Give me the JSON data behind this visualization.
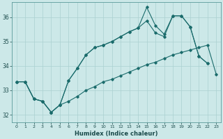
{
  "xlabel": "Humidex (Indice chaleur)",
  "background_color": "#cce8e8",
  "grid_color": "#aad0d0",
  "line_color": "#1a6b6b",
  "xlim": [
    -0.5,
    23.5
  ],
  "ylim": [
    31.7,
    36.6
  ],
  "yticks": [
    32,
    33,
    34,
    35,
    36
  ],
  "xticks": [
    0,
    1,
    2,
    3,
    4,
    5,
    6,
    7,
    8,
    9,
    10,
    11,
    12,
    13,
    14,
    15,
    16,
    17,
    18,
    19,
    20,
    21,
    22,
    23
  ],
  "line1_x": [
    0,
    1,
    2,
    3,
    4,
    5,
    6,
    7,
    8,
    9,
    10,
    11,
    12,
    13,
    14,
    15,
    16,
    17,
    18,
    19,
    20,
    21,
    22,
    23
  ],
  "line1_y": [
    33.35,
    33.35,
    32.65,
    32.55,
    32.1,
    32.4,
    32.55,
    32.75,
    33.0,
    33.15,
    33.35,
    33.45,
    33.6,
    33.75,
    33.9,
    34.05,
    34.15,
    34.3,
    34.45,
    34.55,
    34.65,
    34.75,
    34.85,
    33.65
  ],
  "line2_x": [
    0,
    1,
    2,
    3,
    4,
    5,
    6,
    7,
    8,
    9,
    10,
    11,
    12,
    13,
    14,
    15,
    16,
    17,
    18,
    19,
    20,
    21,
    22
  ],
  "line2_y": [
    33.35,
    33.35,
    32.65,
    32.55,
    32.1,
    32.4,
    33.4,
    33.9,
    34.45,
    34.75,
    34.85,
    35.0,
    35.2,
    35.4,
    35.55,
    35.85,
    35.35,
    35.2,
    36.05,
    36.05,
    35.6,
    34.4,
    34.1
  ],
  "line3_x": [
    0,
    1,
    2,
    3,
    4,
    5,
    6,
    7,
    8,
    9,
    10,
    11,
    12,
    13,
    14,
    15,
    16,
    17,
    18,
    19,
    20,
    21,
    22
  ],
  "line3_y": [
    33.35,
    33.35,
    32.65,
    32.55,
    32.1,
    32.4,
    33.4,
    33.9,
    34.45,
    34.75,
    34.85,
    35.0,
    35.2,
    35.4,
    35.55,
    36.4,
    35.65,
    35.3,
    36.05,
    36.05,
    35.6,
    34.4,
    34.1
  ]
}
